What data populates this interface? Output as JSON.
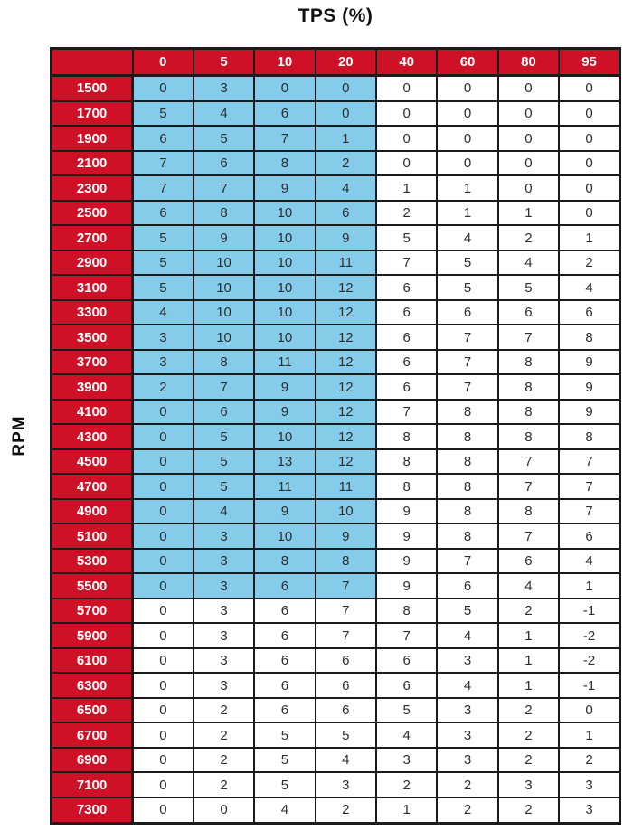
{
  "title": "TPS (%)",
  "y_axis_label": "RPM",
  "colors": {
    "header_red": "#CE1126",
    "highlight_blue": "#84CCEA",
    "grid_black": "#1B1B1B",
    "header_text": "#FFFFFF",
    "cell_text": "#2E2E2E"
  },
  "chart_data": {
    "type": "table",
    "title": "TPS (%)",
    "row_axis_label": "RPM",
    "column_headers": [
      "0",
      "5",
      "10",
      "20",
      "40",
      "60",
      "80",
      "95"
    ],
    "rows": [
      {
        "rpm": "1500",
        "values": [
          0,
          3,
          0,
          0,
          0,
          0,
          0,
          0
        ]
      },
      {
        "rpm": "1700",
        "values": [
          5,
          4,
          6,
          0,
          0,
          0,
          0,
          0
        ]
      },
      {
        "rpm": "1900",
        "values": [
          6,
          5,
          7,
          1,
          0,
          0,
          0,
          0
        ]
      },
      {
        "rpm": "2100",
        "values": [
          7,
          6,
          8,
          2,
          0,
          0,
          0,
          0
        ]
      },
      {
        "rpm": "2300",
        "values": [
          7,
          7,
          9,
          4,
          1,
          1,
          0,
          0
        ]
      },
      {
        "rpm": "2500",
        "values": [
          6,
          8,
          10,
          6,
          2,
          1,
          1,
          0
        ]
      },
      {
        "rpm": "2700",
        "values": [
          5,
          9,
          10,
          9,
          5,
          4,
          2,
          1
        ]
      },
      {
        "rpm": "2900",
        "values": [
          5,
          10,
          10,
          11,
          7,
          5,
          4,
          2
        ]
      },
      {
        "rpm": "3100",
        "values": [
          5,
          10,
          10,
          12,
          6,
          5,
          5,
          4
        ]
      },
      {
        "rpm": "3300",
        "values": [
          4,
          10,
          10,
          12,
          6,
          6,
          6,
          6
        ]
      },
      {
        "rpm": "3500",
        "values": [
          3,
          10,
          10,
          12,
          6,
          7,
          7,
          8
        ]
      },
      {
        "rpm": "3700",
        "values": [
          3,
          8,
          11,
          12,
          6,
          7,
          8,
          9
        ]
      },
      {
        "rpm": "3900",
        "values": [
          2,
          7,
          9,
          12,
          6,
          7,
          8,
          9
        ]
      },
      {
        "rpm": "4100",
        "values": [
          0,
          6,
          9,
          12,
          7,
          8,
          8,
          9
        ]
      },
      {
        "rpm": "4300",
        "values": [
          0,
          5,
          10,
          12,
          8,
          8,
          8,
          8
        ]
      },
      {
        "rpm": "4500",
        "values": [
          0,
          5,
          13,
          12,
          8,
          8,
          7,
          7
        ]
      },
      {
        "rpm": "4700",
        "values": [
          0,
          5,
          11,
          11,
          8,
          8,
          7,
          7
        ]
      },
      {
        "rpm": "4900",
        "values": [
          0,
          4,
          9,
          10,
          9,
          8,
          8,
          7
        ]
      },
      {
        "rpm": "5100",
        "values": [
          0,
          3,
          10,
          9,
          9,
          8,
          7,
          6
        ]
      },
      {
        "rpm": "5300",
        "values": [
          0,
          3,
          8,
          8,
          9,
          7,
          6,
          4
        ]
      },
      {
        "rpm": "5500",
        "values": [
          0,
          3,
          6,
          7,
          9,
          6,
          4,
          1
        ]
      },
      {
        "rpm": "5700",
        "values": [
          0,
          3,
          6,
          7,
          8,
          5,
          2,
          -1
        ]
      },
      {
        "rpm": "5900",
        "values": [
          0,
          3,
          6,
          7,
          7,
          4,
          1,
          -2
        ]
      },
      {
        "rpm": "6100",
        "values": [
          0,
          3,
          6,
          6,
          6,
          3,
          1,
          -2
        ]
      },
      {
        "rpm": "6300",
        "values": [
          0,
          3,
          6,
          6,
          6,
          4,
          1,
          -1
        ]
      },
      {
        "rpm": "6500",
        "values": [
          0,
          2,
          6,
          6,
          5,
          3,
          2,
          0
        ]
      },
      {
        "rpm": "6700",
        "values": [
          0,
          2,
          5,
          5,
          4,
          3,
          2,
          1
        ]
      },
      {
        "rpm": "6900",
        "values": [
          0,
          2,
          5,
          4,
          3,
          3,
          2,
          2
        ]
      },
      {
        "rpm": "7100",
        "values": [
          0,
          2,
          5,
          3,
          2,
          2,
          3,
          3
        ]
      },
      {
        "rpm": "7300",
        "values": [
          0,
          0,
          4,
          2,
          1,
          2,
          2,
          3
        ]
      }
    ],
    "highlight": {
      "description": "blue selected region",
      "row_start_index": 0,
      "row_end_index": 20,
      "col_start_index": 0,
      "col_end_index": 3,
      "color": "#84CCEA"
    },
    "layout_hints": {
      "grid": true,
      "header_position": "top-and-left",
      "title_position": "top-center"
    }
  }
}
